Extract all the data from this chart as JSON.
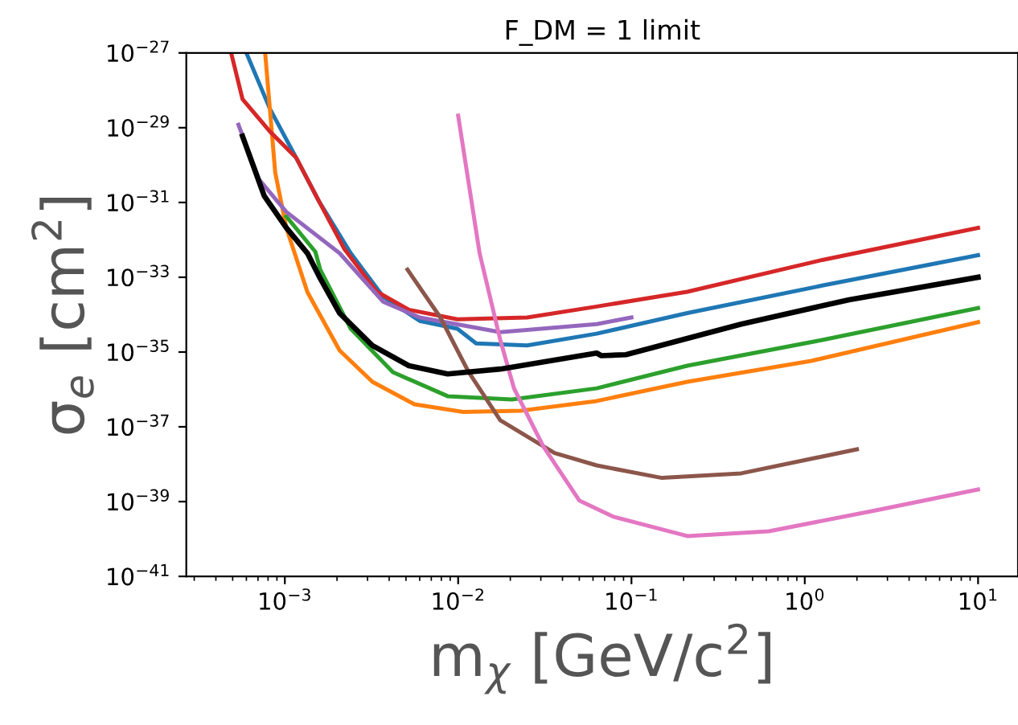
{
  "chart_data": {
    "type": "line",
    "title": "F_DM = 1 limit",
    "xlabel": "m$_{χ}$ [GeV/c$^{2}$]",
    "ylabel": "σ$_{e}$ [cm$^{2}$]",
    "log": "xy",
    "grid": false,
    "legend": false,
    "marker": "none",
    "line_style": "solid",
    "xlim": [
      0.00027,
      17
    ],
    "ylim": [
      1e-41,
      1e-27
    ],
    "xticks": [
      {
        "value": 0.001,
        "label": "10$^{−3}$"
      },
      {
        "value": 0.01,
        "label": "10$^{−2}$"
      },
      {
        "value": 0.1,
        "label": "10$^{−1}$"
      },
      {
        "value": 1,
        "label": "10$^{0}$"
      },
      {
        "value": 10,
        "label": "10$^{1}$"
      }
    ],
    "yticks": [
      {
        "value": 1e-41,
        "label": "10$^{−41}$"
      },
      {
        "value": 1e-39,
        "label": "10$^{−39}$"
      },
      {
        "value": 1e-37,
        "label": "10$^{−37}$"
      },
      {
        "value": 1e-35,
        "label": "10$^{−35}$"
      },
      {
        "value": 1e-33,
        "label": "10$^{−33}$"
      },
      {
        "value": 1e-31,
        "label": "10$^{−31}$"
      },
      {
        "value": 1e-29,
        "label": "10$^{−29}$"
      },
      {
        "value": 1e-27,
        "label": "10$^{−27}$"
      }
    ],
    "series": [
      {
        "color": "#1f77b4",
        "x": [
          0.0006,
          0.00082,
          0.00116,
          0.00157,
          0.0024,
          0.0037,
          0.006,
          0.0099,
          0.0127,
          0.025,
          0.063,
          0.21,
          1.26,
          10
        ],
        "values": [
          1e-27,
          3.2e-29,
          1.6e-30,
          1.1e-31,
          4.4e-33,
          3e-34,
          6.8e-35,
          4.2e-35,
          1.7e-35,
          1.5e-35,
          3.1e-35,
          1.1e-34,
          6e-34,
          3.9e-33
        ]
      },
      {
        "color": "#ff7f0e",
        "x": [
          0.00077,
          0.00088,
          0.00102,
          0.00135,
          0.00207,
          0.0032,
          0.0056,
          0.0107,
          0.023,
          0.063,
          0.21,
          1.09,
          10
        ],
        "values": [
          1e-27,
          6.3e-31,
          2.1e-32,
          4e-34,
          1.1e-35,
          1.6e-36,
          4e-37,
          2.5e-37,
          2.7e-37,
          4.9e-37,
          1.6e-36,
          5.8e-36,
          6.3e-35
        ]
      },
      {
        "color": "#2ca02c",
        "x": [
          0.00102,
          0.0015,
          0.0016,
          0.0024,
          0.0042,
          0.0087,
          0.0204,
          0.063,
          0.21,
          1.26,
          10
        ],
        "values": [
          4.2e-32,
          4.8e-33,
          1.6e-33,
          4.2e-35,
          2.9e-36,
          6.6e-37,
          5.4e-37,
          1.07e-36,
          4.3e-36,
          2.1e-35,
          1.5e-34
        ]
      },
      {
        "color": "#d62728",
        "x": [
          0.00049,
          0.00057,
          0.00082,
          0.00116,
          0.00157,
          0.0022,
          0.0034,
          0.0052,
          0.0099,
          0.025,
          0.063,
          0.21,
          1.26,
          10
        ],
        "values": [
          1e-27,
          5.8e-29,
          7.9e-30,
          1.6e-30,
          1.1e-31,
          5.8e-33,
          4.1e-34,
          1.35e-34,
          7.5e-35,
          8.4e-35,
          1.65e-34,
          4.1e-34,
          2.9e-33,
          2.1e-32
        ]
      },
      {
        "color": "#9467bd",
        "x": [
          0.00054,
          0.00071,
          0.00102,
          0.00207,
          0.0037,
          0.006,
          0.0175,
          0.063,
          0.1
        ],
        "values": [
          1.2e-29,
          4.1e-31,
          5.6e-32,
          4.4e-33,
          2.2e-34,
          8.4e-35,
          3.4e-35,
          5.6e-35,
          8.4e-35
        ]
      },
      {
        "color": "#8c564b",
        "x": [
          0.0051,
          0.0079,
          0.0115,
          0.0175,
          0.036,
          0.063,
          0.15,
          0.43,
          2
        ],
        "values": [
          1.6e-33,
          8.4e-35,
          2.9e-36,
          1.5e-37,
          2e-38,
          9.3e-39,
          4.3e-39,
          5.7e-39,
          2.5e-38
        ]
      },
      {
        "color": "#e377c2",
        "x": [
          0.01,
          0.0133,
          0.0175,
          0.021,
          0.031,
          0.05,
          0.078,
          0.21,
          0.62,
          2.6,
          10
        ],
        "values": [
          2.1e-29,
          4.4e-33,
          2.1e-35,
          1.07e-36,
          3e-38,
          1.07e-39,
          4e-40,
          1.2e-40,
          1.6e-40,
          5.9e-40,
          2.1e-39
        ]
      },
      {
        "color": "#000000",
        "x": [
          0.00057,
          0.00076,
          0.00102,
          0.00135,
          0.00157,
          0.00207,
          0.0032,
          0.0052,
          0.0087,
          0.0175,
          0.063,
          0.067,
          0.093,
          0.43,
          1.8,
          10
        ],
        "values": [
          5.9e-30,
          1.5e-31,
          2.1e-32,
          4.4e-33,
          1.1e-33,
          1.1e-34,
          1.5e-35,
          4.3e-36,
          2.6e-36,
          3.5e-36,
          9.4e-36,
          8e-36,
          8.5e-36,
          5.6e-35,
          2.5e-34,
          1e-33
        ]
      }
    ]
  }
}
